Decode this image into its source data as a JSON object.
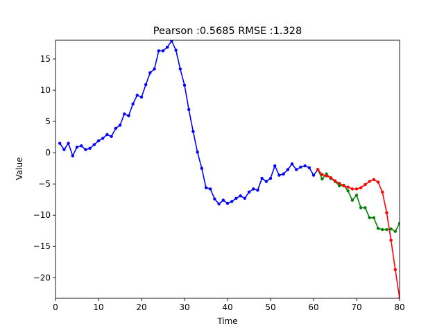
{
  "chart_data": {
    "type": "line",
    "title": "Pearson :0.5685  RMSE :1.328",
    "xlabel": "Time",
    "ylabel": "Value",
    "xlim": [
      0,
      80
    ],
    "ylim": [
      -23.3,
      18
    ],
    "xticks": [
      0,
      10,
      20,
      30,
      40,
      50,
      60,
      70,
      80
    ],
    "yticks": [
      -20,
      -15,
      -10,
      -5,
      0,
      5,
      10,
      15
    ],
    "grid": false,
    "series": [
      {
        "color": "#0000ff",
        "x": [
          1,
          2,
          3,
          4,
          5,
          6,
          7,
          8,
          9,
          10,
          11,
          12,
          13,
          14,
          15,
          16,
          17,
          18,
          19,
          20,
          21,
          22,
          23,
          24,
          25,
          26,
          27,
          28,
          29,
          30,
          31,
          32,
          33,
          34,
          35,
          36,
          37,
          38,
          39,
          40,
          41,
          42,
          43,
          44,
          45,
          46,
          47,
          48,
          49,
          50,
          51,
          52,
          53,
          54,
          55,
          56,
          57,
          58,
          59,
          60,
          61
        ],
        "y": [
          1.5,
          0.5,
          1.5,
          -0.5,
          0.9,
          1.1,
          0.5,
          0.7,
          1.3,
          1.9,
          2.3,
          2.9,
          2.6,
          3.9,
          4.4,
          6.2,
          5.9,
          7.8,
          9.2,
          8.9,
          10.9,
          12.8,
          13.4,
          16.3,
          16.3,
          16.9,
          17.9,
          16.4,
          13.4,
          10.8,
          6.9,
          3.4,
          0.1,
          -2.5,
          -5.6,
          -5.8,
          -7.4,
          -8.2,
          -7.6,
          -8.1,
          -7.8,
          -7.3,
          -6.9,
          -7.3,
          -6.3,
          -5.8,
          -6.0,
          -4.1,
          -4.6,
          -4.1,
          -2.1,
          -3.6,
          -3.4,
          -2.7,
          -1.8,
          -2.7,
          -2.3,
          -2.1,
          -2.4,
          -3.6,
          -2.7
        ]
      },
      {
        "color": "#008000",
        "x": [
          61,
          62,
          63,
          64,
          65,
          66,
          67,
          68,
          69,
          70,
          71,
          72,
          73,
          74,
          75,
          76,
          77,
          78,
          79,
          80
        ],
        "y": [
          -2.7,
          -4.2,
          -3.4,
          -4.1,
          -4.6,
          -5.3,
          -5.2,
          -6.1,
          -7.6,
          -6.8,
          -8.8,
          -8.8,
          -10.4,
          -10.4,
          -12.1,
          -12.3,
          -12.3,
          -12.2,
          -12.6,
          -11.3
        ]
      },
      {
        "color": "#ff0000",
        "x": [
          61,
          62,
          63,
          64,
          65,
          66,
          67,
          68,
          69,
          70,
          71,
          72,
          73,
          74,
          75,
          76,
          77,
          78,
          79,
          80
        ],
        "y": [
          -2.7,
          -3.5,
          -3.7,
          -4.0,
          -4.5,
          -4.9,
          -5.3,
          -5.5,
          -5.8,
          -5.8,
          -5.6,
          -5.1,
          -4.6,
          -4.3,
          -4.7,
          -6.3,
          -9.6,
          -14.0,
          -18.7,
          -23.3
        ]
      }
    ]
  }
}
